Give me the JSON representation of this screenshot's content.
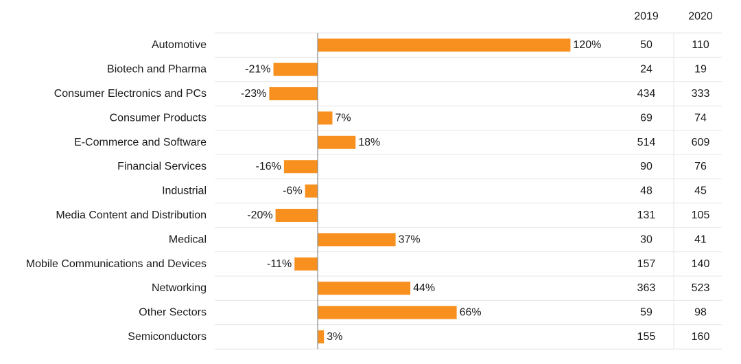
{
  "chart_data": {
    "type": "bar",
    "orientation": "horizontal",
    "title": "",
    "xlabel": "",
    "ylabel": "",
    "xlim": [
      -30,
      130
    ],
    "grid": "horizontal row separators",
    "legend": "none",
    "bar_color": "#f7901e",
    "categories": [
      "Automotive",
      "Biotech and Pharma",
      "Consumer Electronics and PCs",
      "Consumer Products",
      "E-Commerce and Software",
      "Financial Services",
      "Industrial",
      "Media Content and Distribution",
      "Medical",
      "Mobile Communications and Devices",
      "Networking",
      "Other Sectors",
      "Semiconductors"
    ],
    "values": [
      120,
      -21,
      -23,
      7,
      18,
      -16,
      -6,
      -20,
      37,
      -11,
      44,
      66,
      3
    ],
    "value_labels": [
      "120%",
      "-21%",
      "-23%",
      "7%",
      "18%",
      "-16%",
      "-6%",
      "-20%",
      "37%",
      "-11%",
      "44%",
      "66%",
      "3%"
    ],
    "table": {
      "columns": [
        "2019",
        "2020"
      ],
      "rows": [
        [
          "50",
          "110"
        ],
        [
          "24",
          "19"
        ],
        [
          "434",
          "333"
        ],
        [
          "69",
          "74"
        ],
        [
          "514",
          "609"
        ],
        [
          "90",
          "76"
        ],
        [
          "48",
          "45"
        ],
        [
          "131",
          "105"
        ],
        [
          "30",
          "41"
        ],
        [
          "157",
          "140"
        ],
        [
          "363",
          "523"
        ],
        [
          "59",
          "98"
        ],
        [
          "155",
          "160"
        ]
      ]
    }
  },
  "colors": {
    "bar": "#f7901e",
    "grid": "#e6e6e6",
    "zero_line": "#8c8c8c",
    "text": "#1a1a1a"
  }
}
